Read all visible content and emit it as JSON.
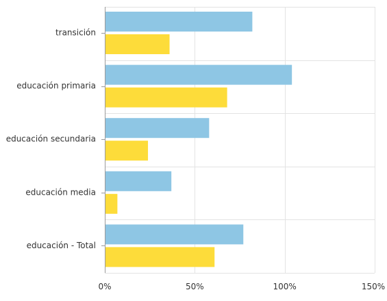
{
  "chart_data": {
    "type": "bar",
    "orientation": "horizontal",
    "categories": [
      "transición",
      "educación primaria",
      "educación secundaria",
      "educación media",
      "educación - Total"
    ],
    "series": [
      {
        "values": [
          82,
          104,
          58,
          37,
          77
        ],
        "color": "#8ec6e4"
      },
      {
        "values": [
          36,
          68,
          24,
          7,
          61
        ],
        "color": "#fddc3a"
      }
    ],
    "x_ticks": [
      0,
      50,
      100,
      150
    ],
    "x_tick_labels": [
      "0%",
      "50%",
      "100%",
      "150%"
    ],
    "xlim": [
      0,
      150
    ],
    "grid": true,
    "legend": "none",
    "title": "",
    "xlabel": "",
    "ylabel": ""
  }
}
